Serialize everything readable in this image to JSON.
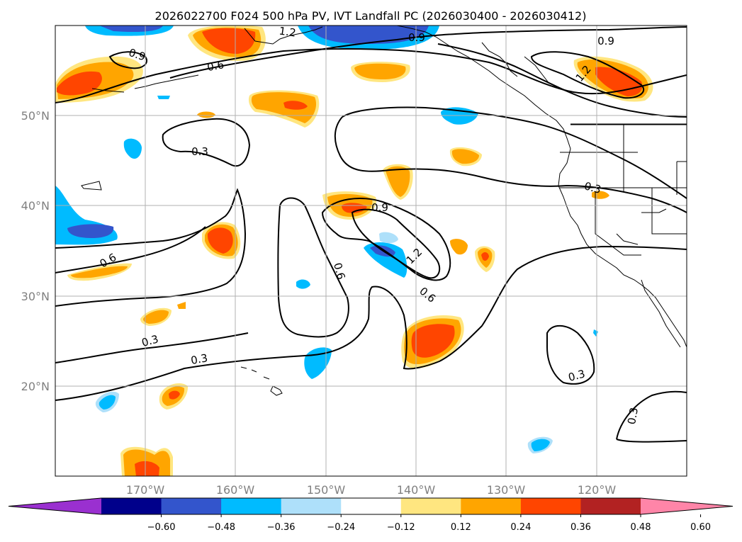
{
  "title": "2026022700 F024 500 hPa PV, IVT Landfall PC (2026030400 - 2026030412)",
  "map": {
    "lat_labels": [
      "50°N",
      "40°N",
      "30°N",
      "20°N"
    ],
    "lon_labels": [
      "170°W",
      "160°W",
      "150°W",
      "140°W",
      "130°W",
      "120°W"
    ]
  },
  "contour_labels": {
    "c1": "0.9",
    "c2": "1.2",
    "c3": "0.9",
    "c4": "0.9",
    "c5": "0.6",
    "c6": "1.2",
    "c7": "0.3",
    "c8": "0.3",
    "c9": "0.9",
    "c10": "1.2",
    "c11": "0.6",
    "c12": "0.6",
    "c13": "0.6",
    "c14": "0.3",
    "c15": "0.3",
    "c16": "0.3",
    "c17": "0.3"
  },
  "colorbar": {
    "colors": [
      "#9a30d0",
      "#00008b",
      "#3355cc",
      "#00bbff",
      "#aee0fa",
      "#ffffff",
      "#ffe680",
      "#ffa500",
      "#ff4500",
      "#b22222",
      "#ff85a8"
    ],
    "ticks": [
      "−0.60",
      "−0.48",
      "−0.36",
      "−0.24",
      "−0.12",
      "0.12",
      "0.24",
      "0.36",
      "0.48",
      "0.60"
    ]
  }
}
